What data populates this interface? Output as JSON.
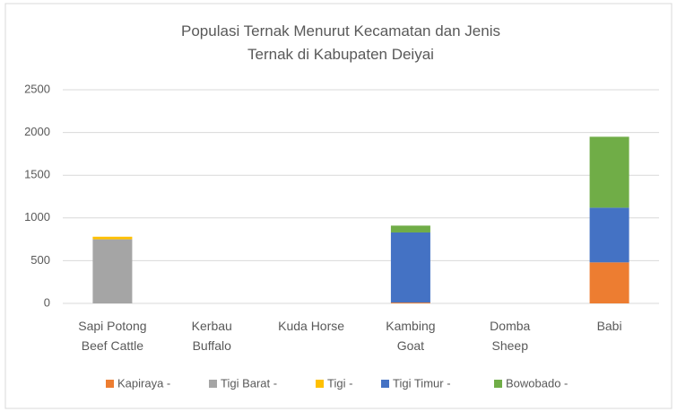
{
  "chart_data": {
    "type": "bar",
    "stacked": true,
    "title": "Populasi Ternak Menurut Kecamatan dan Jenis\nTernak di Kabupaten Deiyai",
    "categories": [
      "Sapi Potong\nBeef Cattle",
      "Kerbau\nBuffalo",
      "Kuda  Horse",
      "Kambing\nGoat",
      "Domba\nSheep",
      "Babi"
    ],
    "series": [
      {
        "name": "Kapiraya -",
        "color": "#ed7d31",
        "values": [
          0,
          0,
          0,
          10,
          0,
          480
        ]
      },
      {
        "name": "Tigi Barat -",
        "color": "#a5a5a5",
        "values": [
          750,
          0,
          0,
          0,
          0,
          0
        ]
      },
      {
        "name": "Tigi -",
        "color": "#ffc000",
        "values": [
          30,
          0,
          0,
          0,
          0,
          0
        ]
      },
      {
        "name": "Tigi Timur -",
        "color": "#4472c4",
        "values": [
          0,
          0,
          0,
          820,
          0,
          640
        ]
      },
      {
        "name": "Bowobado -",
        "color": "#70ad47",
        "values": [
          0,
          0,
          0,
          80,
          0,
          830
        ]
      }
    ],
    "ylim": [
      0,
      2500
    ],
    "yticks": [
      0,
      500,
      1000,
      1500,
      2000,
      2500
    ],
    "grid": true,
    "legend": "bottom"
  }
}
